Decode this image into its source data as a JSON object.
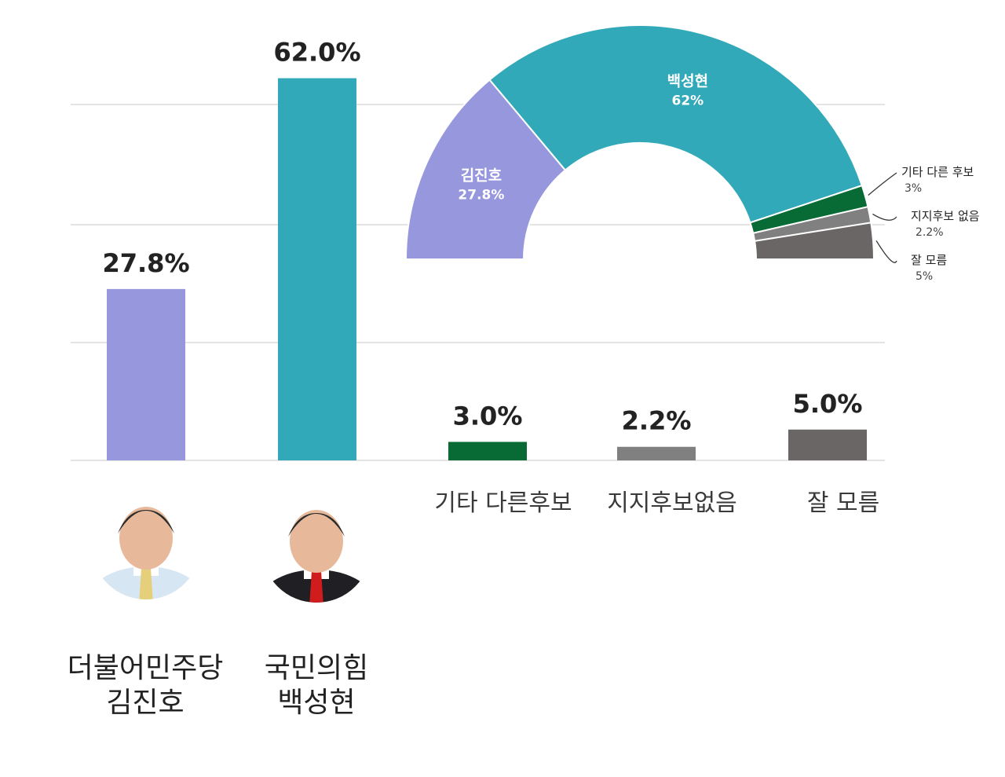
{
  "chart_data": [
    {
      "type": "bar",
      "categories": [
        "김진호",
        "백성현",
        "기타 다른후보",
        "지지후보없음",
        "잘 모름"
      ],
      "values": [
        27.8,
        62.0,
        3.0,
        2.2,
        5.0
      ],
      "value_labels": [
        "27.8%",
        "62.0%",
        "3.0%",
        "2.2%",
        "5.0%"
      ],
      "colors": [
        "#9797de",
        "#31a9b8",
        "#086b36",
        "#808080",
        "#6b6666"
      ],
      "category_labels": [
        [
          "더불어민주당",
          "김진호"
        ],
        [
          "국민의힘",
          "백성현"
        ],
        [
          "기타 다른후보"
        ],
        [
          "지지후보없음"
        ],
        [
          "잘 모름"
        ]
      ],
      "ylim": [
        0,
        65
      ],
      "grid": true,
      "title": "",
      "xlabel": "",
      "ylabel": ""
    },
    {
      "type": "pie",
      "style": "half-donut",
      "slices": [
        {
          "name": "김진호",
          "value": 27.8,
          "label": "27.8%",
          "color": "#9797de"
        },
        {
          "name": "백성현",
          "value": 62,
          "label": "62%",
          "color": "#31a9b8"
        },
        {
          "name": "기타 다른 후보",
          "value": 3,
          "label": "3%",
          "color": "#086b36"
        },
        {
          "name": "지지후보 없음",
          "value": 2.2,
          "label": "2.2%",
          "color": "#808080"
        },
        {
          "name": "잘 모름",
          "value": 5,
          "label": "5%",
          "color": "#6b6666"
        }
      ]
    }
  ],
  "candidates": [
    {
      "icon": "candidate-photo-icon",
      "suit": "#d7e6f3",
      "tie": "#e6cf7a"
    },
    {
      "icon": "candidate-photo-icon",
      "suit": "#1f1f24",
      "tie": "#d01c1c"
    }
  ]
}
